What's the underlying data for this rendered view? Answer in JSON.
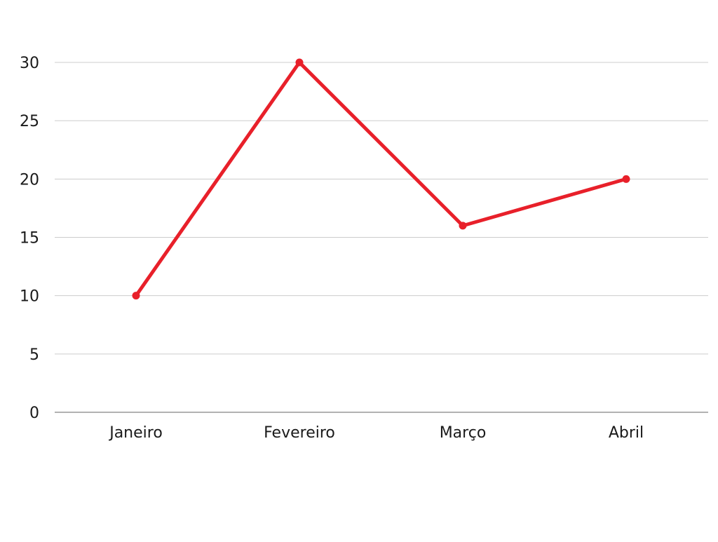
{
  "chart_data": {
    "type": "line",
    "categories": [
      "Janeiro",
      "Fevereiro",
      "Março",
      "Abril"
    ],
    "series": [
      {
        "values": [
          10,
          30,
          16,
          20
        ],
        "color": "#e8202a"
      }
    ],
    "ylim": [
      0,
      30
    ],
    "yticks": [
      0,
      5,
      10,
      15,
      20,
      25,
      30
    ],
    "grid": true,
    "gridColor": "#cccccc",
    "baselineColor": "#999999"
  }
}
